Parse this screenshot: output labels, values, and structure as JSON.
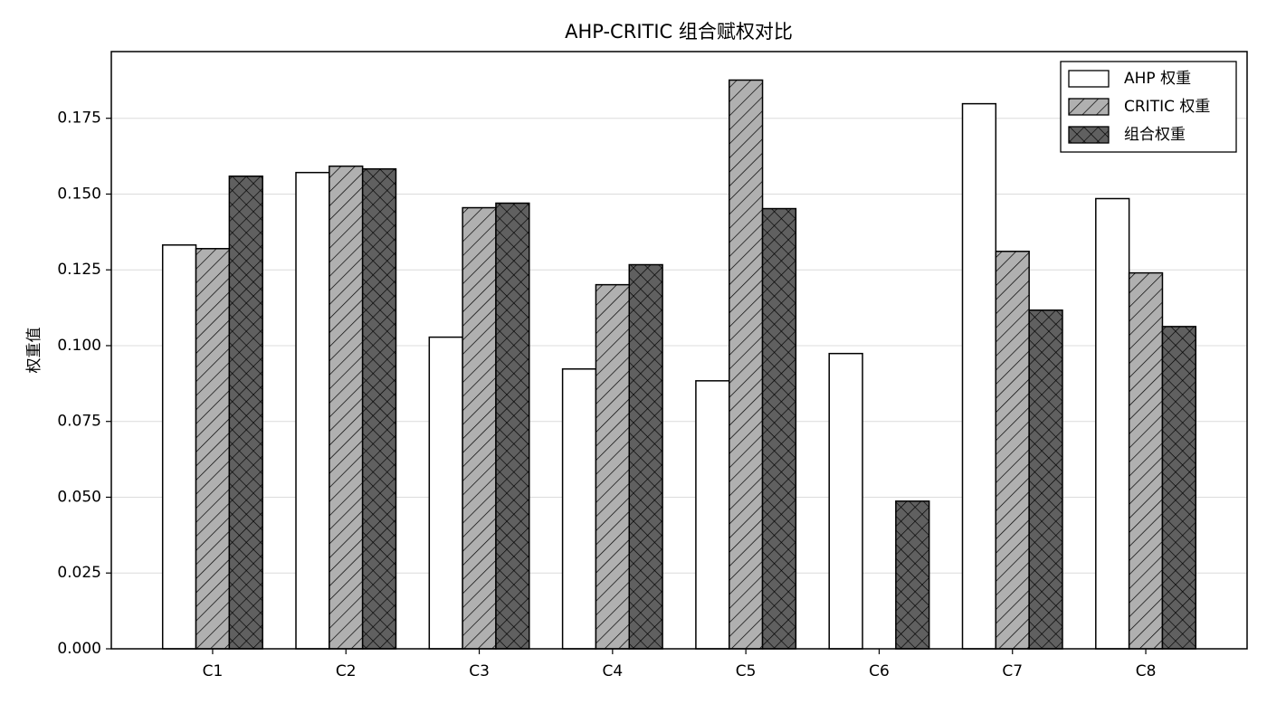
{
  "chart_data": {
    "type": "bar",
    "title": "AHP-CRITIC 组合赋权对比",
    "y_label": "权重值",
    "categories": [
      "C1",
      "C2",
      "C3",
      "C4",
      "C5",
      "C6",
      "C7",
      "C8"
    ],
    "series": [
      {
        "name": "AHP 权重",
        "color": "#ffffff",
        "hatch": "",
        "values": [
          0.1332,
          0.1571,
          0.1028,
          0.0923,
          0.0884,
          0.0974,
          0.1798,
          0.1485
        ]
      },
      {
        "name": "CRITIC 权重",
        "color": "#b0b0b0",
        "hatch": "//",
        "values": [
          0.132,
          0.1592,
          0.1455,
          0.1201,
          0.1876,
          0,
          0.1311,
          0.124
        ]
      },
      {
        "name": "组合权重",
        "color": "#606060",
        "hatch": "xx",
        "values": [
          0.1559,
          0.1583,
          0.147,
          0.1267,
          0.1452,
          0.0487,
          0.1117,
          0.1063
        ]
      }
    ],
    "ylim": [
      0,
      0.197
    ],
    "yticks": [
      {
        "value": 0,
        "label": "0.000"
      },
      {
        "value": 0.025,
        "label": "0.025"
      },
      {
        "value": 0.05,
        "label": "0.050"
      },
      {
        "value": 0.075,
        "label": "0.075"
      },
      {
        "value": 0.1,
        "label": "0.100"
      },
      {
        "value": 0.125,
        "label": "0.125"
      },
      {
        "value": 0.15,
        "label": "0.150"
      },
      {
        "value": 0.175,
        "label": "0.175"
      }
    ],
    "grid": true,
    "legend": "upper right"
  }
}
